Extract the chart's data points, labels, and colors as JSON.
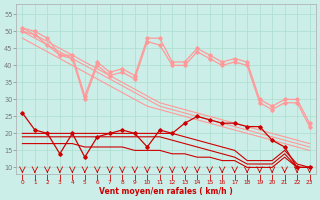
{
  "x": [
    0,
    1,
    2,
    3,
    4,
    5,
    6,
    7,
    8,
    9,
    10,
    11,
    12,
    13,
    14,
    15,
    16,
    17,
    18,
    19,
    20,
    21,
    22,
    23
  ],
  "pink_jagged1": [
    51,
    50,
    48,
    43,
    43,
    31,
    41,
    38,
    39,
    37,
    48,
    48,
    41,
    41,
    45,
    43,
    41,
    42,
    41,
    30,
    28,
    30,
    30,
    23
  ],
  "pink_jagged2": [
    50,
    49,
    46,
    43,
    42,
    30,
    40,
    37,
    38,
    36,
    47,
    46,
    40,
    40,
    44,
    42,
    40,
    41,
    40,
    29,
    27,
    29,
    29,
    22
  ],
  "pink_reg1": [
    51,
    49,
    47,
    45,
    43,
    41,
    39,
    37,
    35,
    33,
    31,
    29,
    28,
    27,
    26,
    25,
    24,
    23,
    22,
    21,
    20,
    19,
    18,
    17
  ],
  "pink_reg2": [
    50,
    48,
    46,
    44,
    42,
    40,
    38,
    36,
    34,
    32,
    30,
    28,
    27,
    26,
    25,
    24,
    23,
    22,
    21,
    20,
    19,
    18,
    17,
    16
  ],
  "pink_reg3": [
    48,
    46,
    44,
    42,
    40,
    38,
    36,
    34,
    32,
    30,
    28,
    27,
    26,
    25,
    24,
    23,
    22,
    21,
    20,
    19,
    18,
    17,
    16,
    15
  ],
  "red_jagged1": [
    26,
    21,
    20,
    14,
    20,
    13,
    19,
    20,
    21,
    20,
    16,
    21,
    20,
    23,
    25,
    24,
    23,
    23,
    22,
    22,
    18,
    16,
    10,
    10
  ],
  "red_reg1": [
    20,
    20,
    20,
    20,
    20,
    20,
    20,
    20,
    20,
    20,
    20,
    20,
    20,
    19,
    18,
    17,
    16,
    15,
    12,
    12,
    12,
    15,
    11,
    10
  ],
  "red_reg2": [
    19,
    19,
    19,
    19,
    19,
    19,
    19,
    19,
    19,
    19,
    19,
    19,
    18,
    17,
    16,
    15,
    14,
    13,
    11,
    11,
    11,
    14,
    10,
    10
  ],
  "red_reg3": [
    17,
    17,
    17,
    17,
    17,
    16,
    16,
    16,
    16,
    15,
    15,
    15,
    14,
    14,
    13,
    13,
    12,
    12,
    10,
    10,
    10,
    13,
    10,
    10
  ],
  "bg_color": "#cceee8",
  "grid_color": "#aaddcc",
  "pink": "#ff9999",
  "red": "#cc0000",
  "xlabel": "Vent moyen/en rafales ( km/h )",
  "ylim": [
    8,
    58
  ],
  "yticks": [
    10,
    15,
    20,
    25,
    30,
    35,
    40,
    45,
    50,
    55
  ],
  "xticks": [
    0,
    1,
    2,
    3,
    4,
    5,
    6,
    7,
    8,
    9,
    10,
    11,
    12,
    13,
    14,
    15,
    16,
    17,
    18,
    19,
    20,
    21,
    22,
    23
  ]
}
